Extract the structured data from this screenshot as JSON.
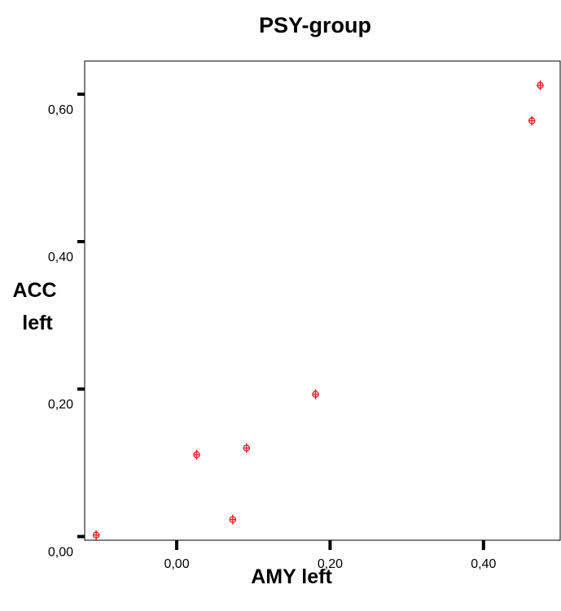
{
  "chart_data": {
    "type": "scatter",
    "title": "PSY-group",
    "xlabel": "AMY left",
    "ylabel": [
      "ACC",
      "left"
    ],
    "xlim": [
      -0.12,
      0.5
    ],
    "ylim": [
      -0.005,
      0.645
    ],
    "x_ticks": [
      {
        "value": 0.0,
        "label": "0,00"
      },
      {
        "value": 0.2,
        "label": "0,20"
      },
      {
        "value": 0.4,
        "label": "0,40"
      }
    ],
    "y_ticks": [
      {
        "value": 0.0,
        "label": "0,00"
      },
      {
        "value": 0.2,
        "label": "0,20"
      },
      {
        "value": 0.4,
        "label": "0,40"
      },
      {
        "value": 0.6,
        "label": "0,60"
      }
    ],
    "grid": false,
    "legend": "none",
    "marker_color": "#e8191c",
    "points": [
      {
        "x": -0.105,
        "y": 0.002
      },
      {
        "x": 0.026,
        "y": 0.111
      },
      {
        "x": 0.073,
        "y": 0.023
      },
      {
        "x": 0.091,
        "y": 0.12
      },
      {
        "x": 0.181,
        "y": 0.193
      },
      {
        "x": 0.463,
        "y": 0.564
      },
      {
        "x": 0.474,
        "y": 0.612
      }
    ]
  }
}
